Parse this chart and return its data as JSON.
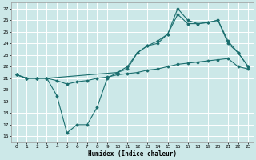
{
  "xlabel": "Humidex (Indice chaleur)",
  "bg_color": "#cce8e8",
  "grid_color": "#ffffff",
  "line_color": "#1a6e6e",
  "xlim": [
    -0.5,
    23.5
  ],
  "ylim": [
    15.5,
    27.5
  ],
  "yticks": [
    16,
    17,
    18,
    19,
    20,
    21,
    22,
    23,
    24,
    25,
    26,
    27
  ],
  "xticks": [
    0,
    1,
    2,
    3,
    4,
    5,
    6,
    7,
    8,
    9,
    10,
    11,
    12,
    13,
    14,
    15,
    16,
    17,
    18,
    19,
    20,
    21,
    22,
    23
  ],
  "series1_x": [
    0,
    1,
    2,
    3,
    4,
    5,
    6,
    7,
    8,
    9,
    10,
    11,
    12,
    13,
    14,
    15,
    16,
    17,
    18,
    19,
    20,
    21,
    22,
    23
  ],
  "series1_y": [
    21.3,
    21.0,
    21.0,
    21.0,
    20.8,
    20.5,
    20.7,
    20.8,
    21.0,
    21.1,
    21.3,
    21.4,
    21.5,
    21.7,
    21.8,
    22.0,
    22.2,
    22.3,
    22.4,
    22.5,
    22.6,
    22.7,
    22.0,
    21.8
  ],
  "series2_x": [
    0,
    1,
    2,
    3,
    4,
    5,
    6,
    7,
    8,
    9,
    10,
    11,
    12,
    13,
    14,
    15,
    16,
    17,
    18,
    19,
    20,
    21,
    22,
    23
  ],
  "series2_y": [
    21.3,
    21.0,
    21.0,
    21.0,
    19.5,
    16.3,
    17.0,
    17.0,
    18.5,
    21.0,
    21.5,
    21.8,
    23.2,
    23.8,
    24.0,
    24.8,
    27.0,
    26.0,
    25.7,
    25.8,
    26.0,
    24.0,
    23.2,
    22.0
  ],
  "series3_x": [
    0,
    1,
    2,
    3,
    10,
    11,
    12,
    13,
    14,
    15,
    16,
    17,
    18,
    19,
    20,
    21,
    22,
    23
  ],
  "series3_y": [
    21.3,
    21.0,
    21.0,
    21.0,
    21.5,
    22.0,
    23.2,
    23.8,
    24.2,
    24.8,
    26.5,
    25.7,
    25.7,
    25.8,
    26.0,
    24.2,
    23.2,
    22.0
  ]
}
